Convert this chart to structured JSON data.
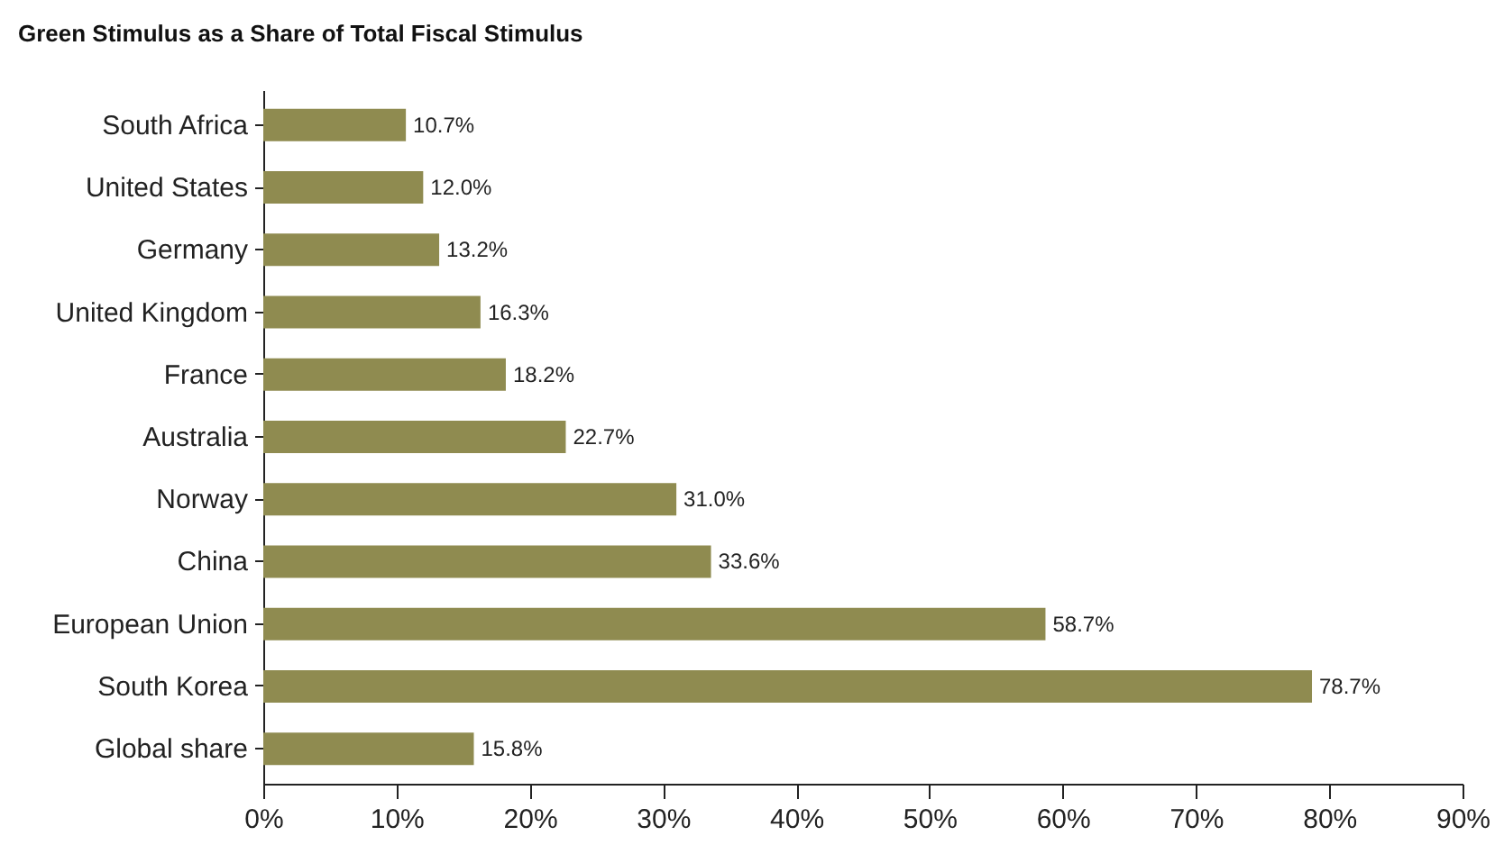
{
  "chart_data": {
    "type": "bar",
    "orientation": "horizontal",
    "title": "Green Stimulus as a Share of Total Fiscal Stimulus",
    "categories": [
      "South Africa",
      "United States",
      "Germany",
      "United Kingdom",
      "France",
      "Australia",
      "Norway",
      "China",
      "European Union",
      "South Korea",
      "Global share"
    ],
    "values": [
      10.7,
      12.0,
      13.2,
      16.3,
      18.2,
      22.7,
      31.0,
      33.6,
      58.7,
      78.7,
      15.8
    ],
    "value_labels": [
      "10.7%",
      "12.0%",
      "13.2%",
      "16.3%",
      "18.2%",
      "22.7%",
      "31.0%",
      "33.6%",
      "58.7%",
      "78.7%",
      "15.8%"
    ],
    "color": "#8f8b50",
    "xlim": [
      0,
      90
    ],
    "xticks": [
      {
        "value": 0,
        "label": "0%"
      },
      {
        "value": 10,
        "label": "10%"
      },
      {
        "value": 20,
        "label": "20%"
      },
      {
        "value": 30,
        "label": "30%"
      },
      {
        "value": 40,
        "label": "40%"
      },
      {
        "value": 50,
        "label": "50%"
      },
      {
        "value": 60,
        "label": "60%"
      },
      {
        "value": 70,
        "label": "70%"
      },
      {
        "value": 80,
        "label": "80%"
      },
      {
        "value": 90,
        "label": "90%"
      }
    ],
    "grid": false
  }
}
